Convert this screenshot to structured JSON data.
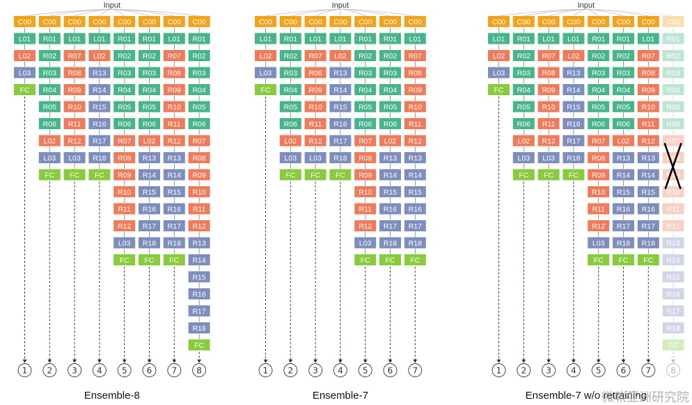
{
  "input_label": "Input",
  "colors": {
    "C": "#f3a21c",
    "L": "#47b489",
    "R_teal": "#47b489",
    "R_orange": "#ef7b5a",
    "R_blue": "#7d8dbd",
    "L03": "#7d8dbd",
    "L02": "#ef7b5a",
    "FC": "#8acb3e",
    "arrow": "#333333",
    "fanout": "#bbbbbb"
  },
  "columns": [
    [
      "C00",
      "L01",
      "L02",
      "L03",
      "FC"
    ],
    [
      "C00",
      "R01",
      "R02",
      "R03",
      "R04",
      "R05",
      "R06",
      "L02",
      "L03",
      "FC"
    ],
    [
      "C00",
      "L01",
      "R07",
      "R08",
      "R09",
      "R10",
      "R11",
      "R12",
      "L03",
      "FC"
    ],
    [
      "C00",
      "L01",
      "L02",
      "R13",
      "R14",
      "R15",
      "R16",
      "R17",
      "R18",
      "FC"
    ],
    [
      "C00",
      "R01",
      "R02",
      "R03",
      "R04",
      "R05",
      "R06",
      "R07",
      "R08",
      "R09",
      "R10",
      "R11",
      "R12",
      "L03",
      "FC"
    ],
    [
      "C00",
      "R01",
      "R02",
      "R03",
      "R04",
      "R05",
      "R06",
      "L02",
      "R13",
      "R14",
      "R15",
      "R16",
      "R17",
      "R18",
      "FC"
    ],
    [
      "C00",
      "L01",
      "R07",
      "R08",
      "R09",
      "R10",
      "R11",
      "R12",
      "R13",
      "R14",
      "R15",
      "R16",
      "R17",
      "R18",
      "FC"
    ],
    [
      "C00",
      "R01",
      "R02",
      "R03",
      "R04",
      "R05",
      "R06",
      "R07",
      "R08",
      "R09",
      "R10",
      "R11",
      "R12",
      "R13",
      "R14",
      "R15",
      "R16",
      "R17",
      "R18",
      "FC"
    ]
  ],
  "circle_labels": [
    "①",
    "②",
    "③",
    "④",
    "⑤",
    "⑥",
    "⑦",
    "⑧"
  ],
  "panels": [
    {
      "title": "Ensemble-8",
      "num_columns": 8,
      "faded_column": null,
      "crossed": false
    },
    {
      "title": "Ensemble-7",
      "num_columns": 7,
      "faded_column": null,
      "crossed": false
    },
    {
      "title": "Ensemble-7 w/o retraining",
      "num_columns": 8,
      "faded_column": 7,
      "crossed": true
    }
  ],
  "watermark": "微软亚洲研究院"
}
